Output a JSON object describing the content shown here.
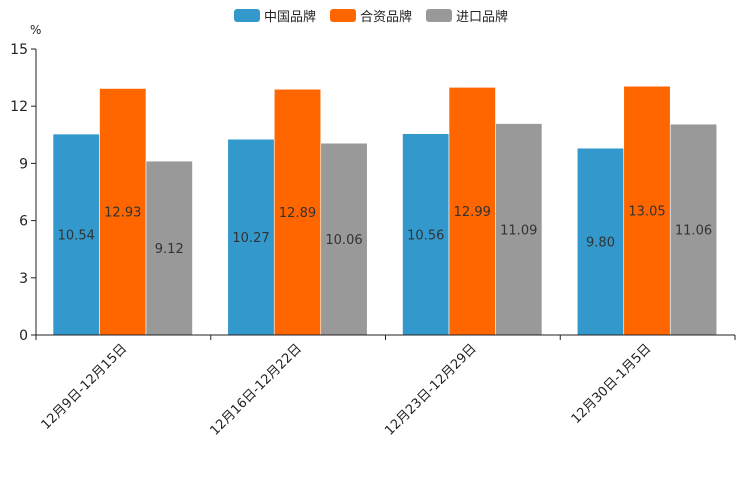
{
  "chart_data": {
    "type": "bar",
    "title": "",
    "xlabel": "",
    "ylabel": "",
    "unit": "%",
    "ylim": [
      0,
      15
    ],
    "yticks": [
      0,
      3,
      6,
      9,
      12,
      15
    ],
    "grid": false,
    "legend_position": "top-center",
    "categories": [
      "12月9日-12月15日",
      "12月16日-12月22日",
      "12月23日-12月29日",
      "12月30日-1月5日"
    ],
    "series": [
      {
        "name": "中国品牌",
        "color": "#3399cc",
        "values": [
          10.54,
          10.27,
          10.56,
          9.8
        ],
        "labels": [
          "10.54",
          "10.27",
          "10.56",
          "9.80"
        ]
      },
      {
        "name": "合资品牌",
        "color": "#ff6600",
        "values": [
          12.93,
          12.89,
          12.99,
          13.05
        ],
        "labels": [
          "12.93",
          "12.89",
          "12.99",
          "13.05"
        ]
      },
      {
        "name": "进口品牌",
        "color": "#999999",
        "values": [
          9.12,
          10.06,
          11.09,
          11.06
        ],
        "labels": [
          "9.12",
          "10.06",
          "11.09",
          "11.06"
        ]
      }
    ]
  }
}
